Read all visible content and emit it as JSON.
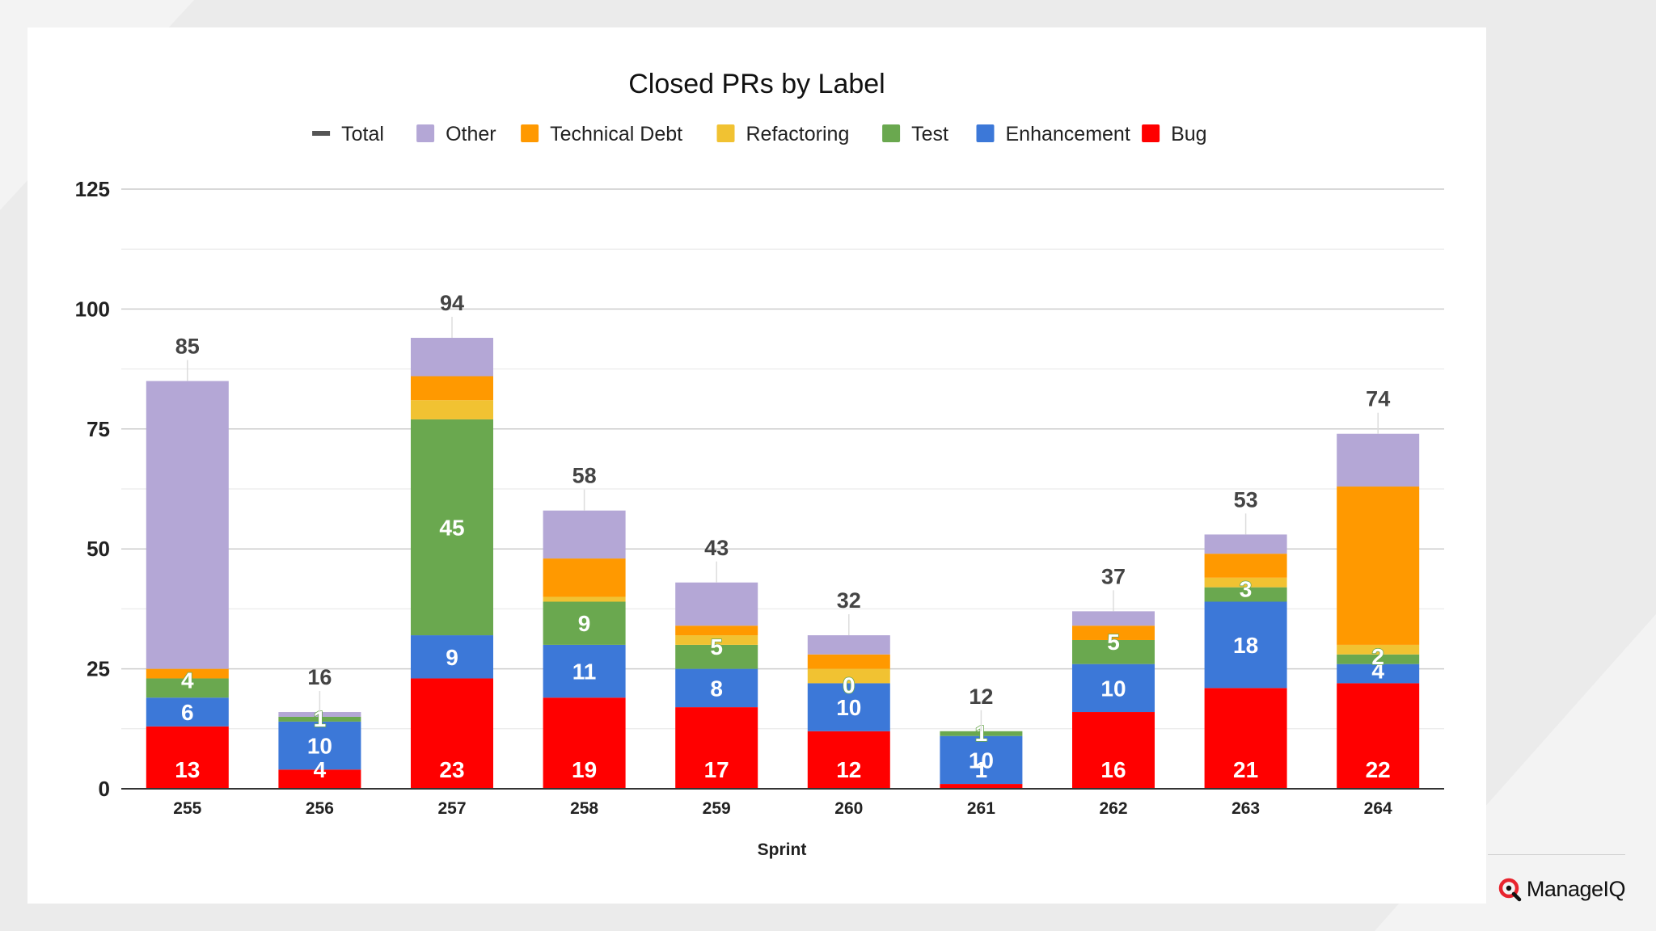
{
  "chart_data": {
    "type": "stacked-bar",
    "title": "Closed PRs by Label",
    "xlabel": "Sprint",
    "ylabel": "",
    "ylim": [
      0,
      125
    ],
    "yticks": [
      0,
      25,
      50,
      75,
      100,
      125
    ],
    "grid": true,
    "legend": "top",
    "categories": [
      "255",
      "256",
      "257",
      "258",
      "259",
      "260",
      "261",
      "262",
      "263",
      "264"
    ],
    "totals": [
      85,
      16,
      94,
      58,
      43,
      32,
      12,
      37,
      53,
      74
    ],
    "series": [
      {
        "name": "Bug",
        "color": "#ff0000",
        "values": [
          13,
          4,
          23,
          19,
          17,
          12,
          1,
          16,
          21,
          22
        ],
        "labels": [
          "13",
          "4",
          "23",
          "19",
          "17",
          "12",
          "1",
          "16",
          "21",
          "22"
        ]
      },
      {
        "name": "Enhancement",
        "color": "#3c78d8",
        "values": [
          6,
          10,
          9,
          11,
          8,
          10,
          10,
          10,
          18,
          4
        ],
        "labels": [
          "6",
          "10",
          "9",
          "11",
          "8",
          "10",
          "10",
          "10",
          "18",
          "4"
        ]
      },
      {
        "name": "Test",
        "color": "#6aa84f",
        "values": [
          4,
          1,
          45,
          9,
          5,
          0,
          1,
          5,
          3,
          2
        ],
        "labels": [
          "4",
          "1",
          "45",
          "9",
          "5",
          "0",
          "1",
          "5",
          "3",
          "2"
        ]
      },
      {
        "name": "Refactoring",
        "color": "#f1c232",
        "values": [
          0,
          0,
          4,
          1,
          2,
          3,
          0,
          0,
          2,
          2
        ],
        "labels": []
      },
      {
        "name": "Technical Debt",
        "color": "#ff9900",
        "values": [
          2,
          0,
          5,
          8,
          2,
          3,
          0,
          3,
          5,
          33
        ],
        "labels": []
      },
      {
        "name": "Other",
        "color": "#b4a7d6",
        "values": [
          60,
          1,
          8,
          10,
          9,
          4,
          0,
          3,
          4,
          11
        ],
        "labels": []
      }
    ],
    "legend_items": [
      {
        "name": "Total",
        "color": "#555555",
        "marker": "line"
      },
      {
        "name": "Other",
        "color": "#b4a7d6",
        "marker": "square"
      },
      {
        "name": "Technical Debt",
        "color": "#ff9900",
        "marker": "square"
      },
      {
        "name": "Refactoring",
        "color": "#f1c232",
        "marker": "square"
      },
      {
        "name": "Test",
        "color": "#6aa84f",
        "marker": "square"
      },
      {
        "name": "Enhancement",
        "color": "#3c78d8",
        "marker": "square"
      },
      {
        "name": "Bug",
        "color": "#ff0000",
        "marker": "square"
      }
    ]
  },
  "brand": {
    "name": "ManageIQ",
    "icon": "manageiq-logo-icon",
    "color": "#e8242e"
  }
}
